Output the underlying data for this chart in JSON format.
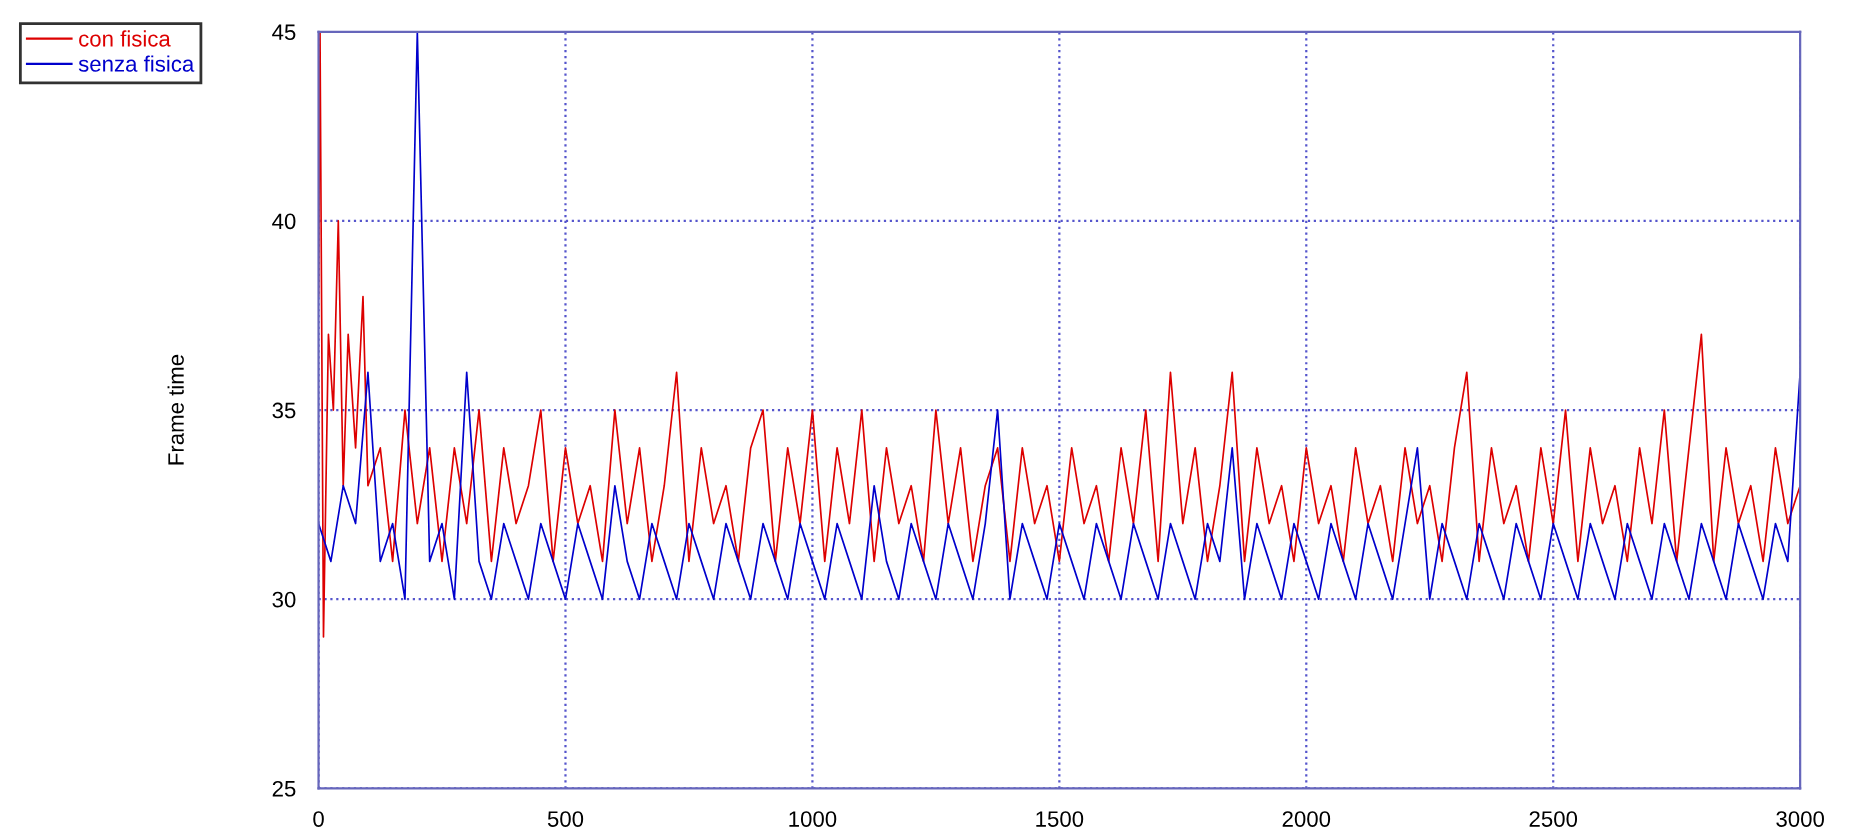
{
  "chart_data": {
    "type": "line",
    "ylabel": "Frame time",
    "xlim": [
      0,
      3000
    ],
    "xticks": [
      0,
      500,
      1000,
      1500,
      2000,
      2500,
      3000
    ],
    "ylim": [
      25,
      45
    ],
    "yticks": [
      25,
      30,
      35,
      40,
      45
    ],
    "grid": true,
    "legend": "top left",
    "marker": "none",
    "line_style": "solid",
    "series": [
      {
        "name": "con fisica",
        "color": "#dd0000",
        "x": [
          0,
          3,
          10,
          20,
          30,
          40,
          50,
          60,
          75,
          90,
          100,
          125,
          150,
          175,
          200,
          225,
          250,
          275,
          300,
          325,
          350,
          375,
          400,
          425,
          450,
          475,
          500,
          525,
          550,
          575,
          600,
          625,
          650,
          675,
          700,
          725,
          750,
          775,
          800,
          825,
          850,
          875,
          900,
          925,
          950,
          975,
          1000,
          1025,
          1050,
          1075,
          1100,
          1125,
          1150,
          1175,
          1200,
          1225,
          1250,
          1275,
          1300,
          1325,
          1350,
          1375,
          1400,
          1425,
          1450,
          1475,
          1500,
          1525,
          1550,
          1575,
          1600,
          1625,
          1650,
          1675,
          1700,
          1725,
          1750,
          1775,
          1800,
          1825,
          1850,
          1875,
          1900,
          1925,
          1950,
          1975,
          2000,
          2025,
          2050,
          2075,
          2100,
          2125,
          2150,
          2175,
          2200,
          2225,
          2250,
          2275,
          2300,
          2325,
          2350,
          2375,
          2400,
          2425,
          2450,
          2475,
          2500,
          2525,
          2550,
          2575,
          2600,
          2625,
          2650,
          2675,
          2700,
          2725,
          2750,
          2775,
          2800,
          2825,
          2850,
          2875,
          2900,
          2925,
          2950,
          2975,
          3000
        ],
        "values": [
          38,
          45,
          29,
          37,
          35,
          40,
          33,
          37,
          34,
          38,
          33,
          34,
          31,
          35,
          32,
          34,
          31,
          34,
          32,
          35,
          31,
          34,
          32,
          33,
          35,
          31,
          34,
          32,
          33,
          31,
          35,
          32,
          34,
          31,
          33,
          36,
          31,
          34,
          32,
          33,
          31,
          34,
          35,
          31,
          34,
          32,
          35,
          31,
          34,
          32,
          35,
          31,
          34,
          32,
          33,
          31,
          35,
          32,
          34,
          31,
          33,
          34,
          31,
          34,
          32,
          33,
          31,
          34,
          32,
          33,
          31,
          34,
          32,
          35,
          31,
          36,
          32,
          34,
          31,
          33,
          36,
          31,
          34,
          32,
          33,
          31,
          34,
          32,
          33,
          31,
          34,
          32,
          33,
          31,
          34,
          32,
          33,
          31,
          34,
          36,
          31,
          34,
          32,
          33,
          31,
          34,
          32,
          35,
          31,
          34,
          32,
          33,
          31,
          34,
          32,
          35,
          31,
          34,
          37,
          31,
          34,
          32,
          33,
          31,
          34,
          32,
          33
        ]
      },
      {
        "name": "senza fisica",
        "color": "#0000cc",
        "x": [
          0,
          25,
          50,
          75,
          100,
          125,
          150,
          175,
          200,
          225,
          250,
          275,
          300,
          325,
          350,
          375,
          400,
          425,
          450,
          475,
          500,
          525,
          550,
          575,
          600,
          625,
          650,
          675,
          700,
          725,
          750,
          775,
          800,
          825,
          850,
          875,
          900,
          925,
          950,
          975,
          1000,
          1025,
          1050,
          1075,
          1100,
          1125,
          1150,
          1175,
          1200,
          1225,
          1250,
          1275,
          1300,
          1325,
          1350,
          1375,
          1400,
          1425,
          1450,
          1475,
          1500,
          1525,
          1550,
          1575,
          1600,
          1625,
          1650,
          1675,
          1700,
          1725,
          1750,
          1775,
          1800,
          1825,
          1850,
          1875,
          1900,
          1925,
          1950,
          1975,
          2000,
          2025,
          2050,
          2075,
          2100,
          2125,
          2150,
          2175,
          2200,
          2225,
          2250,
          2275,
          2300,
          2325,
          2350,
          2375,
          2400,
          2425,
          2450,
          2475,
          2500,
          2525,
          2550,
          2575,
          2600,
          2625,
          2650,
          2675,
          2700,
          2725,
          2750,
          2775,
          2800,
          2825,
          2850,
          2875,
          2900,
          2925,
          2950,
          2975,
          3000
        ],
        "values": [
          32,
          31,
          33,
          32,
          36,
          31,
          32,
          30,
          45,
          31,
          32,
          30,
          36,
          31,
          30,
          32,
          31,
          30,
          32,
          31,
          30,
          32,
          31,
          30,
          33,
          31,
          30,
          32,
          31,
          30,
          32,
          31,
          30,
          32,
          31,
          30,
          32,
          31,
          30,
          32,
          31,
          30,
          32,
          31,
          30,
          33,
          31,
          30,
          32,
          31,
          30,
          32,
          31,
          30,
          32,
          35,
          30,
          32,
          31,
          30,
          32,
          31,
          30,
          32,
          31,
          30,
          32,
          31,
          30,
          32,
          31,
          30,
          32,
          31,
          34,
          30,
          32,
          31,
          30,
          32,
          31,
          30,
          32,
          31,
          30,
          32,
          31,
          30,
          32,
          34,
          30,
          32,
          31,
          30,
          32,
          31,
          30,
          32,
          31,
          30,
          32,
          31,
          30,
          32,
          31,
          30,
          32,
          31,
          30,
          32,
          31,
          30,
          32,
          31,
          30,
          32,
          31,
          30,
          32,
          31,
          36
        ]
      }
    ]
  }
}
